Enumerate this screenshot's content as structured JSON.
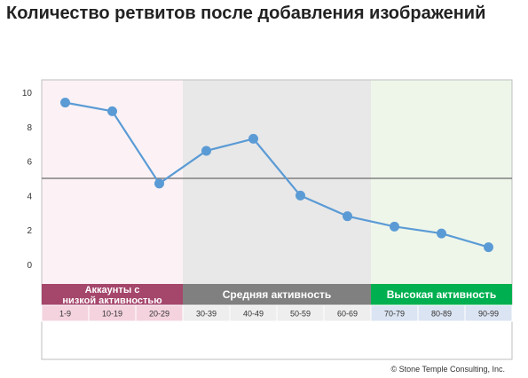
{
  "title": "Количество ретвитов после добавления изображений",
  "copyright": "© Stone Temple Consulting, Inc.",
  "chart_data": {
    "type": "line",
    "title": "Количество ретвитов после добавления изображений",
    "xlabel": "",
    "ylabel": "",
    "categories": [
      "1-9",
      "10-19",
      "20-29",
      "30-39",
      "40-49",
      "50-59",
      "60-69",
      "70-79",
      "80-89",
      "90-99"
    ],
    "values": [
      9.4,
      8.9,
      4.7,
      6.6,
      7.3,
      4.0,
      2.8,
      2.2,
      1.8,
      1.0
    ],
    "ylim": [
      0,
      10
    ],
    "yticks": [
      0,
      2,
      4,
      6,
      8,
      10
    ],
    "reference_line": 5.0,
    "line_color": "#5b9bd5",
    "reference_color": "#808080",
    "grid": false,
    "groups": [
      {
        "label": "Аккаунты с низкой активностью",
        "start": 0,
        "count": 3,
        "band_color": "#a5466b",
        "bg_color": "#fcf2f5",
        "cell_color": "#f4d3de"
      },
      {
        "label": "Средняя активность",
        "start": 3,
        "count": 4,
        "band_color": "#808080",
        "bg_color": "#e8e8e8",
        "cell_color": "#eeeeee"
      },
      {
        "label": "Высокая активность",
        "start": 7,
        "count": 3,
        "band_color": "#00b050",
        "bg_color": "#eef6ea",
        "cell_color": "#dbe4f2"
      }
    ]
  }
}
